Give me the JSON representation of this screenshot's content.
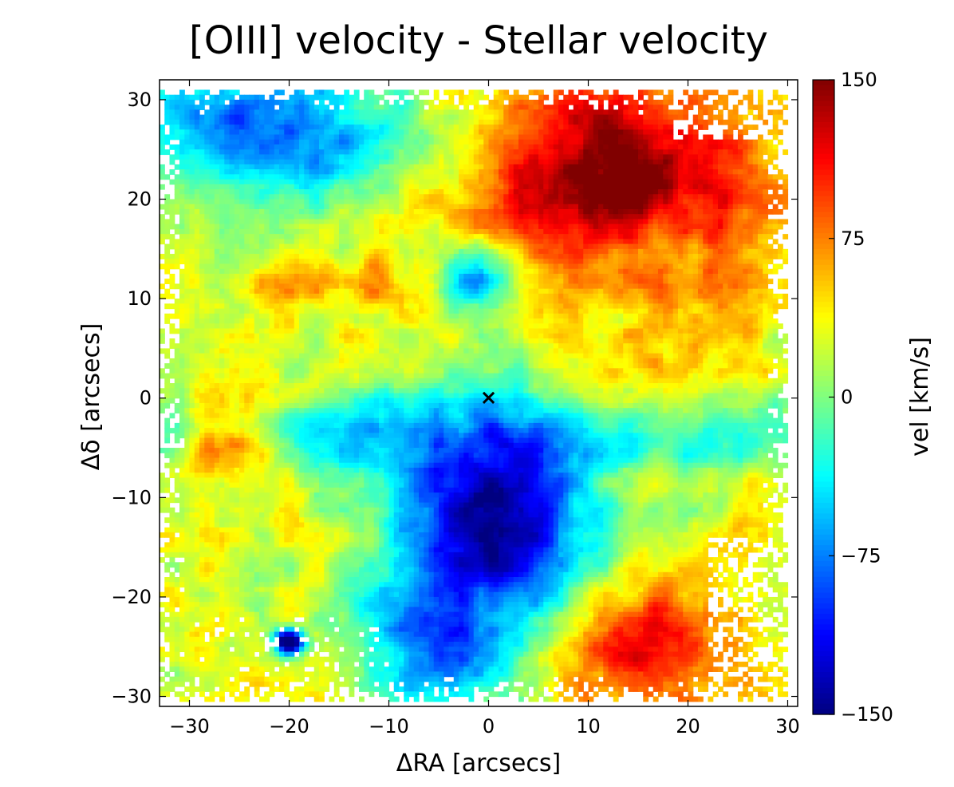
{
  "chart_data": {
    "type": "heatmap",
    "title": "[OIII] velocity - Stellar velocity",
    "xlabel": "ΔRA [arcsecs]",
    "ylabel": "Δδ [arcsecs]",
    "xlim": [
      -33,
      31
    ],
    "ylim": [
      -31,
      32
    ],
    "x_ticks": [
      -30,
      -20,
      -10,
      0,
      10,
      20,
      30
    ],
    "y_ticks": [
      -30,
      -20,
      -10,
      0,
      10,
      20,
      30
    ],
    "x_tick_labels": [
      "−30",
      "−20",
      "−10",
      "0",
      "10",
      "20",
      "30"
    ],
    "y_tick_labels": [
      "−30",
      "−20",
      "−10",
      "0",
      "10",
      "20",
      "30"
    ],
    "grid": false,
    "colormap": "jet",
    "colorbar": {
      "label": "vel [km/s]",
      "range": [
        -150,
        150
      ],
      "ticks": [
        150,
        75,
        0,
        -75,
        -150
      ],
      "tick_labels": [
        "150",
        "75",
        "0",
        "−75",
        "−150"
      ]
    },
    "center_marker": {
      "x": 0,
      "y": 0,
      "symbol": "×"
    },
    "field_extent": {
      "x": [
        -33,
        30
      ],
      "y": [
        -30.5,
        31
      ]
    },
    "velocity_components": [
      {
        "region": "north-east redshifted lobe",
        "x": 13,
        "y": 22,
        "sx": 11,
        "sy": 8,
        "v": 155
      },
      {
        "region": "north-east lobe tail",
        "x": 20,
        "y": 13,
        "sx": 6,
        "sy": 4,
        "v": 70
      },
      {
        "region": "eastern redshifted patches",
        "x": 12,
        "y": 4,
        "sx": 4,
        "sy": 3,
        "v": 45
      },
      {
        "region": "south-east redshifted corner",
        "x": 15,
        "y": -25,
        "sx": 7,
        "sy": 5,
        "v": 120
      },
      {
        "region": "south blueshifted plume",
        "x": 0,
        "y": -12,
        "sx": 7,
        "sy": 8,
        "v": -155
      },
      {
        "region": "south plume base",
        "x": -4,
        "y": -24,
        "sx": 5,
        "sy": 5,
        "v": -100
      },
      {
        "region": "south-west blueshifted knot",
        "x": -12,
        "y": -5,
        "sx": 4,
        "sy": 3,
        "v": -55
      },
      {
        "region": "north-west blueshifted region",
        "x": -22,
        "y": 27,
        "sx": 10,
        "sy": 5,
        "v": -85
      },
      {
        "region": "north-central blue knot",
        "x": -2,
        "y": 12,
        "sx": 3,
        "sy": 2.5,
        "v": -75
      },
      {
        "region": "western redshifted arm",
        "x": -26,
        "y": -5,
        "sx": 3,
        "sy": 3,
        "v": 85
      },
      {
        "region": "north-west redshifted filament",
        "x": -14,
        "y": 11,
        "sx": 7,
        "sy": 2,
        "v": 60
      },
      {
        "region": "south-west yellow band",
        "x": -25,
        "y": -13,
        "sx": 7,
        "sy": 4,
        "v": 30
      },
      {
        "region": "south-west dark knot",
        "x": -20,
        "y": -24.5,
        "sx": 1.1,
        "sy": 0.9,
        "v": -200
      }
    ]
  }
}
